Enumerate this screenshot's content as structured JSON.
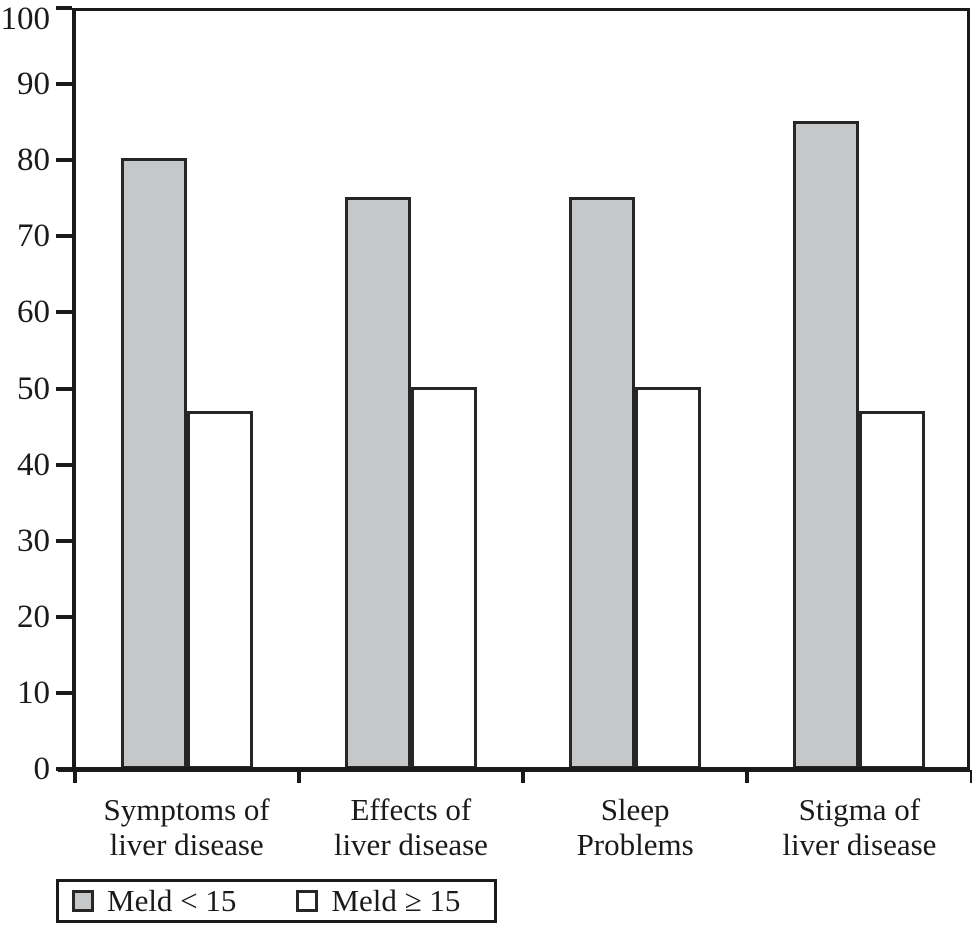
{
  "figure": {
    "background": "#ffffff",
    "axis_color": "#1a1a1a",
    "text_color": "#1a1a1a",
    "bar_border_color": "#262626"
  },
  "chart_data": {
    "type": "bar",
    "title": "",
    "xlabel": "",
    "ylabel": "",
    "categories": [
      "Symptoms of liver disease",
      "Effects of liver disease",
      "Sleep Problems",
      "Stigma of liver disease"
    ],
    "category_label_lines": [
      [
        "Symptoms of",
        "liver disease"
      ],
      [
        "Effects of",
        "liver disease"
      ],
      [
        "Sleep",
        "Problems"
      ],
      [
        "Stigma of",
        "liver disease"
      ]
    ],
    "series": [
      {
        "name": "Meld < 15",
        "fill": "#c5c7c9",
        "values": [
          80.3,
          75.2,
          75.2,
          85.2
        ]
      },
      {
        "name": "Meld ≥ 15",
        "fill": "#ffffff",
        "values": [
          47.1,
          50.2,
          50.2,
          47.1
        ]
      }
    ],
    "ylim": [
      0,
      100
    ],
    "y_ticks": [
      0,
      10,
      20,
      30,
      40,
      50,
      60,
      70,
      80,
      90,
      100
    ],
    "grid": false,
    "legend_position": "bottom-left"
  }
}
